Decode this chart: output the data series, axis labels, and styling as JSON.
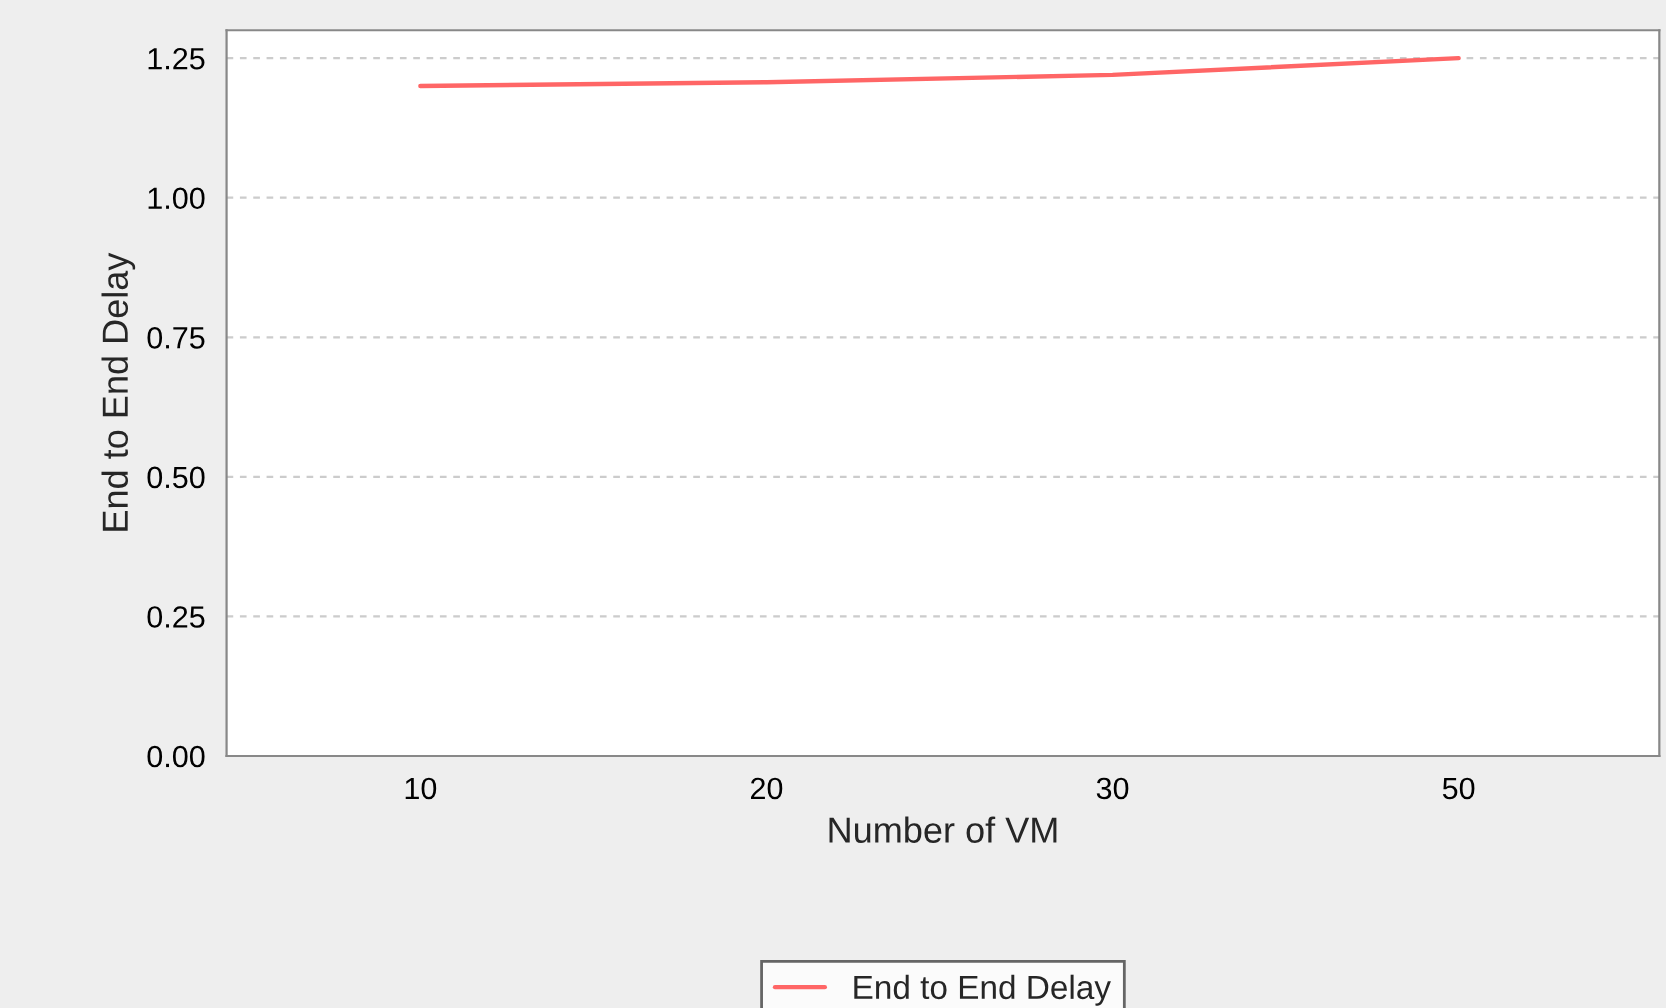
{
  "chart_data": {
    "type": "line",
    "xlabel": "Number of VM",
    "ylabel": "End to End Delay",
    "categories": [
      "10",
      "20",
      "30",
      "50"
    ],
    "series": [
      {
        "name": "End to End Delay",
        "color": "#ff6666",
        "values": [
          1.2,
          1.207,
          1.22,
          1.25
        ]
      }
    ],
    "ylim": [
      0,
      1.3
    ],
    "yticks": [
      {
        "value": 0,
        "label": "0.00"
      },
      {
        "value": 0.25,
        "label": "0.25"
      },
      {
        "value": 0.5,
        "label": "0.50"
      },
      {
        "value": 0.75,
        "label": "0.75"
      },
      {
        "value": 1.0,
        "label": "1.00"
      },
      {
        "value": 1.25,
        "label": "1.25"
      }
    ],
    "grid": "y",
    "legend": "bottom",
    "marker": "none",
    "line_style": "solid"
  }
}
